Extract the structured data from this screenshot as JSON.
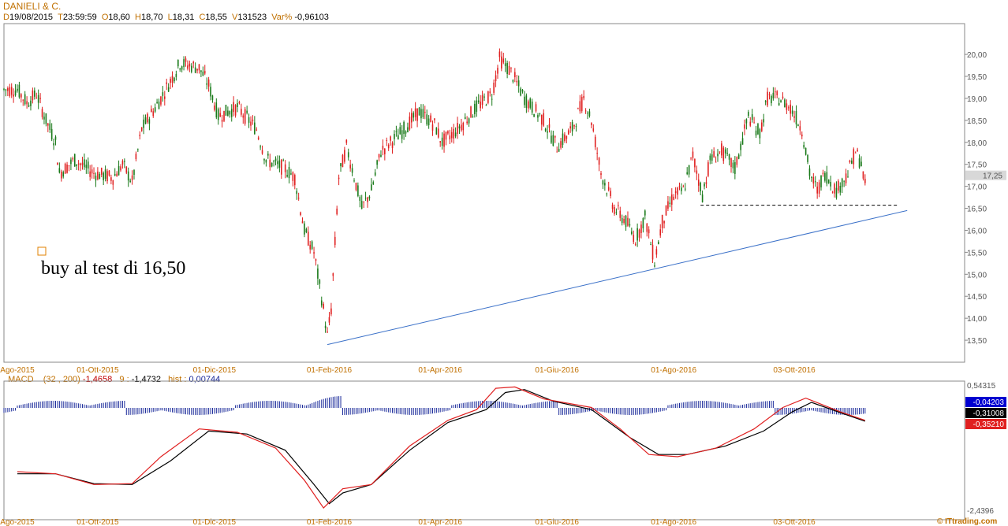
{
  "header": {
    "title": "DANIELI & C.",
    "d_label": "D",
    "date": "19/08/2015",
    "t_label": "T",
    "time": "23:59:59",
    "o_label": "O",
    "open": "18,60",
    "h_label": "H",
    "high": "18,70",
    "l_label": "L",
    "low": "18,31",
    "c_label": "C",
    "close": "18,55",
    "v_label": "V",
    "volume": "131523",
    "var_label": "Var%",
    "var": "-0,96103"
  },
  "macd_header": {
    "name": "MACD",
    "params": "(32 , 200)",
    "macd_value": "-1,4658",
    "signal_period": "9 :",
    "signal_value": "-1,4732",
    "hist_label": "hist :",
    "hist_value": "0,00744"
  },
  "annotation": "buy al test di 16,50",
  "last_price": "17,25",
  "copyright": "© ITtrading.com",
  "colors": {
    "up": "#1a7a1a",
    "down": "#e02020",
    "trendline": "#3a70c8",
    "support": "#000000",
    "macd": "#000000",
    "signal": "#e02020",
    "hist": "#1a2a9a"
  },
  "chart_data": [
    {
      "type": "candlestick",
      "title": "DANIELI & C.",
      "ylim": [
        13.0,
        20.7
      ],
      "yticks": [
        "13,50",
        "14,00",
        "14,50",
        "15,00",
        "15,50",
        "16,00",
        "16,50",
        "17,00",
        "17,50",
        "18,00",
        "18,50",
        "19,00",
        "19,50",
        "20,00"
      ],
      "ytick_values": [
        13.5,
        14,
        14.5,
        15,
        15.5,
        16,
        16.5,
        17,
        17.5,
        18,
        18.5,
        19,
        19.5,
        20
      ],
      "xticks": [
        "Ago-2015",
        "01-Ott-2015",
        "01-Dic-2015",
        "01-Feb-2016",
        "01-Apr-2016",
        "01-Giu-2016",
        "01-Ago-2016",
        "03-Ott-2016"
      ],
      "xtick_days": [
        0,
        42,
        103,
        163,
        221,
        282,
        343,
        406
      ],
      "day_range": [
        -7,
        495
      ],
      "path_points": [
        [
          0,
          19.2
        ],
        [
          5,
          18.9
        ],
        [
          10,
          19.1
        ],
        [
          15,
          18.5
        ],
        [
          20,
          18.0
        ],
        [
          22,
          17.3
        ],
        [
          30,
          17.6
        ],
        [
          40,
          17.3
        ],
        [
          50,
          17.2
        ],
        [
          55,
          17.5
        ],
        [
          60,
          17.1
        ],
        [
          65,
          18.3
        ],
        [
          75,
          19.0
        ],
        [
          85,
          19.8
        ],
        [
          95,
          19.7
        ],
        [
          100,
          19.3
        ],
        [
          105,
          18.6
        ],
        [
          115,
          18.8
        ],
        [
          125,
          18.3
        ],
        [
          130,
          17.6
        ],
        [
          140,
          17.4
        ],
        [
          145,
          17.2
        ],
        [
          150,
          16.0
        ],
        [
          155,
          15.5
        ],
        [
          160,
          14.2
        ],
        [
          162,
          13.6
        ],
        [
          164,
          14.2
        ],
        [
          168,
          17.2
        ],
        [
          172,
          17.9
        ],
        [
          175,
          17.4
        ],
        [
          180,
          16.5
        ],
        [
          185,
          16.9
        ],
        [
          190,
          17.8
        ],
        [
          200,
          18.2
        ],
        [
          210,
          18.7
        ],
        [
          218,
          18.4
        ],
        [
          222,
          18.0
        ],
        [
          230,
          18.3
        ],
        [
          240,
          18.8
        ],
        [
          248,
          19.1
        ],
        [
          252,
          19.9
        ],
        [
          258,
          19.6
        ],
        [
          265,
          19.0
        ],
        [
          275,
          18.5
        ],
        [
          282,
          17.9
        ],
        [
          290,
          18.3
        ],
        [
          296,
          19.0
        ],
        [
          300,
          18.5
        ],
        [
          305,
          17.3
        ],
        [
          312,
          16.5
        ],
        [
          318,
          16.2
        ],
        [
          323,
          15.8
        ],
        [
          328,
          16.3
        ],
        [
          333,
          15.3
        ],
        [
          337,
          16.2
        ],
        [
          343,
          16.8
        ],
        [
          348,
          16.9
        ],
        [
          353,
          17.7
        ],
        [
          358,
          16.8
        ],
        [
          362,
          17.6
        ],
        [
          368,
          17.8
        ],
        [
          375,
          17.4
        ],
        [
          382,
          18.6
        ],
        [
          388,
          18.2
        ],
        [
          392,
          19.0
        ],
        [
          398,
          19.0
        ],
        [
          404,
          18.8
        ],
        [
          410,
          18.3
        ],
        [
          414,
          17.3
        ],
        [
          418,
          16.9
        ],
        [
          422,
          17.3
        ],
        [
          428,
          16.9
        ],
        [
          434,
          17.3
        ],
        [
          438,
          17.8
        ],
        [
          441,
          17.5
        ],
        [
          443,
          17.0
        ]
      ],
      "last_price": 17.25,
      "trendline": {
        "from": [
          162,
          13.4
        ],
        "to": [
          465,
          16.45
        ]
      },
      "support_line": {
        "from": [
          357,
          16.57
        ],
        "to": [
          460,
          16.57
        ]
      }
    },
    {
      "type": "line",
      "title": "MACD",
      "params": "(32 , 200)",
      "yrange": [
        -2.4396,
        0.54315
      ],
      "ytick_labels": [
        "0,54315",
        "-2,4396"
      ],
      "value_badges": [
        "-0,04203",
        "-0,31008",
        "-0,35210"
      ],
      "series": [
        {
          "name": "MACD",
          "points": [
            [
              0,
              -1.55
            ],
            [
              20,
              -1.55
            ],
            [
              40,
              -1.78
            ],
            [
              60,
              -1.8
            ],
            [
              80,
              -1.25
            ],
            [
              100,
              -0.55
            ],
            [
              120,
              -0.62
            ],
            [
              140,
              -1.0
            ],
            [
              155,
              -1.8
            ],
            [
              163,
              -2.25
            ],
            [
              170,
              -2.0
            ],
            [
              185,
              -1.8
            ],
            [
              205,
              -1.0
            ],
            [
              225,
              -0.35
            ],
            [
              245,
              -0.05
            ],
            [
              255,
              0.35
            ],
            [
              265,
              0.42
            ],
            [
              280,
              0.15
            ],
            [
              300,
              -0.05
            ],
            [
              320,
              -0.7
            ],
            [
              335,
              -1.1
            ],
            [
              350,
              -1.1
            ],
            [
              370,
              -0.9
            ],
            [
              390,
              -0.55
            ],
            [
              405,
              -0.1
            ],
            [
              415,
              0.12
            ],
            [
              430,
              -0.12
            ],
            [
              443,
              -0.32
            ]
          ]
        },
        {
          "name": "Signal",
          "points": [
            [
              0,
              -1.5
            ],
            [
              20,
              -1.55
            ],
            [
              40,
              -1.8
            ],
            [
              60,
              -1.78
            ],
            [
              75,
              -1.15
            ],
            [
              95,
              -0.5
            ],
            [
              115,
              -0.58
            ],
            [
              135,
              -0.95
            ],
            [
              150,
              -1.7
            ],
            [
              160,
              -2.35
            ],
            [
              170,
              -1.9
            ],
            [
              185,
              -1.8
            ],
            [
              205,
              -0.9
            ],
            [
              225,
              -0.3
            ],
            [
              240,
              -0.05
            ],
            [
              250,
              0.45
            ],
            [
              260,
              0.48
            ],
            [
              275,
              0.2
            ],
            [
              300,
              0.0
            ],
            [
              315,
              -0.5
            ],
            [
              330,
              -1.1
            ],
            [
              345,
              -1.15
            ],
            [
              365,
              -0.95
            ],
            [
              385,
              -0.5
            ],
            [
              400,
              0.0
            ],
            [
              412,
              0.22
            ],
            [
              430,
              -0.1
            ],
            [
              443,
              -0.3
            ]
          ]
        },
        {
          "name": "Hist",
          "values_estimate": "oscillating around 0 with small amplitude"
        }
      ]
    }
  ]
}
